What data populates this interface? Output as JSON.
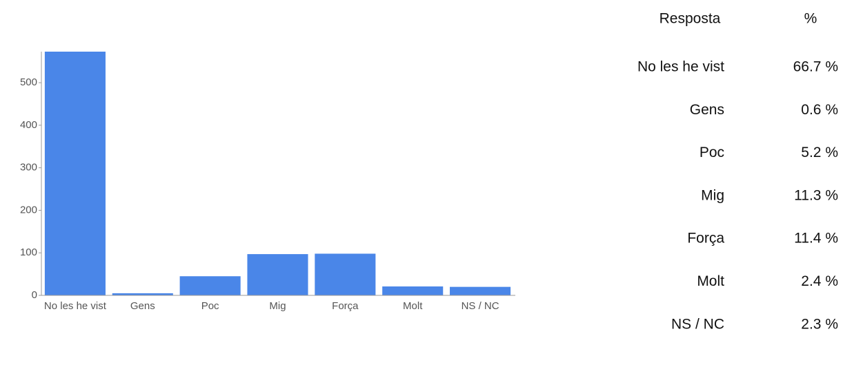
{
  "chart_data": {
    "type": "bar",
    "categories": [
      "No les he vist",
      "Gens",
      "Poc",
      "Mig",
      "Força",
      "Molt",
      "NS / NC"
    ],
    "values": [
      575,
      5,
      45,
      97,
      98,
      21,
      20
    ],
    "color": "#4a86e8",
    "ylim": [
      0,
      573
    ],
    "yticks": [
      0,
      100,
      200,
      300,
      400,
      500
    ],
    "grid": false
  },
  "table": {
    "header": [
      "Resposta",
      "%"
    ],
    "rows": [
      [
        "No les he vist",
        "66.7 %"
      ],
      [
        "Gens",
        "0.6 %"
      ],
      [
        "Poc",
        "5.2 %"
      ],
      [
        "Mig",
        "11.3 %"
      ],
      [
        "Força",
        "11.4 %"
      ],
      [
        "Molt",
        "2.4 %"
      ],
      [
        "NS / NC",
        "2.3 %"
      ]
    ]
  }
}
